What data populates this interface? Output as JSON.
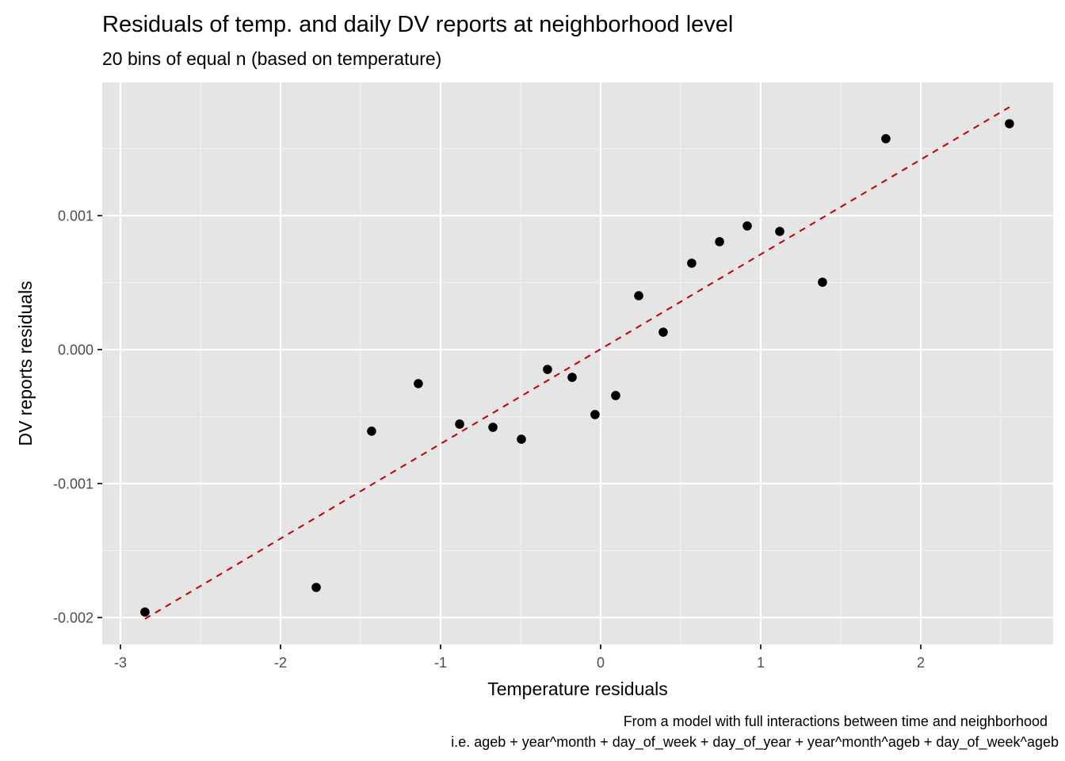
{
  "chart_data": {
    "type": "scatter",
    "title": "Residuals of temp. and daily DV reports at neighborhood level",
    "subtitle": "20 bins of equal n (based on temperature)",
    "xlabel": "Temperature residuals",
    "ylabel": "DV reports residuals",
    "caption": [
      "From a model with full interactions between time and neighborhood",
      "i.e. ageb + year^month + day_of_week + day_of_year + year^month^ageb + day_of_week^ageb"
    ],
    "xlim": [
      -3.114,
      2.827
    ],
    "ylim": [
      -0.002201,
      0.001994
    ],
    "x_ticks": [
      -3,
      -2,
      -1,
      0,
      1,
      2
    ],
    "x_tick_labels": [
      "-3",
      "-2",
      "-1",
      "0",
      "1",
      "2"
    ],
    "y_ticks": [
      -0.002,
      -0.001,
      0.0,
      0.001
    ],
    "y_tick_labels": [
      "-0.002",
      "-0.001",
      "0.000",
      "0.001"
    ],
    "grid": true,
    "points": {
      "x": [
        -2.847,
        -1.777,
        -1.431,
        -1.139,
        -0.881,
        -0.673,
        -0.495,
        -0.332,
        -0.178,
        -0.035,
        0.094,
        0.238,
        0.391,
        0.569,
        0.743,
        0.916,
        1.119,
        1.386,
        1.782,
        2.554
      ],
      "y": [
        -0.001959,
        -0.001775,
        -0.000609,
        -0.000254,
        -0.000556,
        -0.00058,
        -0.000669,
        -0.000148,
        -0.000207,
        -0.000485,
        -0.000343,
        0.000402,
        0.00013,
        0.000645,
        0.000805,
        0.000923,
        0.000882,
        0.000503,
        0.001574,
        0.001686
      ],
      "color": "#000000"
    },
    "fit_line": {
      "style": "dashed",
      "color": "#c00000",
      "x": [
        -2.847,
        2.554
      ],
      "y": [
        -0.00201,
        0.00181
      ]
    },
    "colors": {
      "panel_background": "#e5e5e5",
      "grid_major": "#ffffff",
      "grid_minor": "#f2f2f2"
    }
  }
}
